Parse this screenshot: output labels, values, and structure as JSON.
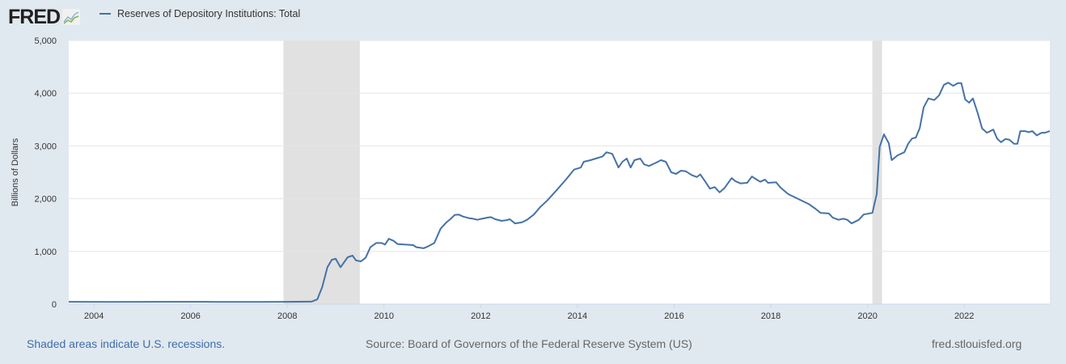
{
  "header": {
    "logo_text": "FRED",
    "series_label": "Reserves of Depository Institutions: Total"
  },
  "footer": {
    "recession_note": "Shaded areas indicate U.S. recessions.",
    "source": "Source: Board of Governors of the Federal Reserve System (US)",
    "site": "fred.stlouisfed.org"
  },
  "colors": {
    "series": "#4572a7",
    "recession": "#e1e1e1",
    "background": "#e1e9f0"
  },
  "chart_data": {
    "type": "line",
    "title": "Reserves of Depository Institutions: Total",
    "xlabel": "",
    "ylabel": "Billions of Dollars",
    "xlim": [
      2003.48,
      2023.77
    ],
    "ylim": [
      0,
      5000
    ],
    "grid": true,
    "legend_position": "top-left",
    "yticks": [
      0,
      1000,
      2000,
      3000,
      4000,
      5000
    ],
    "ytick_labels": [
      "0",
      "1,000",
      "2,000",
      "3,000",
      "4,000",
      "5,000"
    ],
    "xticks": [
      2004,
      2006,
      2008,
      2010,
      2012,
      2014,
      2016,
      2018,
      2020,
      2022
    ],
    "xtick_labels": [
      "2004",
      "2006",
      "2008",
      "2010",
      "2012",
      "2014",
      "2016",
      "2018",
      "2020",
      "2022"
    ],
    "recessions": [
      [
        2007.92,
        2009.5
      ],
      [
        2020.1,
        2020.3
      ]
    ],
    "series": [
      {
        "name": "Reserves of Depository Institutions: Total",
        "points": [
          [
            2003.48,
            45
          ],
          [
            2004.5,
            42
          ],
          [
            2005.5,
            45
          ],
          [
            2006.5,
            43
          ],
          [
            2007.5,
            42
          ],
          [
            2008.0,
            44
          ],
          [
            2008.5,
            48
          ],
          [
            2008.62,
            90
          ],
          [
            2008.72,
            320
          ],
          [
            2008.83,
            700
          ],
          [
            2008.92,
            840
          ],
          [
            2009.0,
            860
          ],
          [
            2009.1,
            700
          ],
          [
            2009.25,
            890
          ],
          [
            2009.35,
            920
          ],
          [
            2009.42,
            830
          ],
          [
            2009.52,
            810
          ],
          [
            2009.62,
            880
          ],
          [
            2009.72,
            1080
          ],
          [
            2009.84,
            1160
          ],
          [
            2009.95,
            1160
          ],
          [
            2010.02,
            1130
          ],
          [
            2010.1,
            1240
          ],
          [
            2010.2,
            1200
          ],
          [
            2010.28,
            1140
          ],
          [
            2010.6,
            1120
          ],
          [
            2010.67,
            1080
          ],
          [
            2010.82,
            1060
          ],
          [
            2010.92,
            1100
          ],
          [
            2011.04,
            1160
          ],
          [
            2011.17,
            1430
          ],
          [
            2011.29,
            1550
          ],
          [
            2011.37,
            1610
          ],
          [
            2011.46,
            1690
          ],
          [
            2011.54,
            1700
          ],
          [
            2011.64,
            1660
          ],
          [
            2011.76,
            1630
          ],
          [
            2011.84,
            1620
          ],
          [
            2011.93,
            1600
          ],
          [
            2012.03,
            1620
          ],
          [
            2012.13,
            1640
          ],
          [
            2012.21,
            1650
          ],
          [
            2012.3,
            1610
          ],
          [
            2012.43,
            1580
          ],
          [
            2012.53,
            1590
          ],
          [
            2012.6,
            1610
          ],
          [
            2012.71,
            1530
          ],
          [
            2012.85,
            1550
          ],
          [
            2012.96,
            1600
          ],
          [
            2013.1,
            1700
          ],
          [
            2013.23,
            1840
          ],
          [
            2013.37,
            1960
          ],
          [
            2013.56,
            2150
          ],
          [
            2013.76,
            2360
          ],
          [
            2013.93,
            2550
          ],
          [
            2014.07,
            2590
          ],
          [
            2014.13,
            2700
          ],
          [
            2014.27,
            2730
          ],
          [
            2014.38,
            2760
          ],
          [
            2014.52,
            2800
          ],
          [
            2014.6,
            2880
          ],
          [
            2014.72,
            2850
          ],
          [
            2014.85,
            2590
          ],
          [
            2014.93,
            2700
          ],
          [
            2015.02,
            2760
          ],
          [
            2015.1,
            2590
          ],
          [
            2015.18,
            2730
          ],
          [
            2015.3,
            2760
          ],
          [
            2015.38,
            2650
          ],
          [
            2015.48,
            2620
          ],
          [
            2015.6,
            2670
          ],
          [
            2015.73,
            2730
          ],
          [
            2015.83,
            2700
          ],
          [
            2015.94,
            2500
          ],
          [
            2016.04,
            2470
          ],
          [
            2016.14,
            2530
          ],
          [
            2016.24,
            2520
          ],
          [
            2016.36,
            2450
          ],
          [
            2016.47,
            2410
          ],
          [
            2016.54,
            2460
          ],
          [
            2016.64,
            2330
          ],
          [
            2016.74,
            2190
          ],
          [
            2016.84,
            2220
          ],
          [
            2016.94,
            2120
          ],
          [
            2017.04,
            2200
          ],
          [
            2017.19,
            2390
          ],
          [
            2017.27,
            2330
          ],
          [
            2017.37,
            2290
          ],
          [
            2017.51,
            2300
          ],
          [
            2017.61,
            2420
          ],
          [
            2017.71,
            2360
          ],
          [
            2017.78,
            2320
          ],
          [
            2017.88,
            2360
          ],
          [
            2017.94,
            2300
          ],
          [
            2018.11,
            2310
          ],
          [
            2018.2,
            2210
          ],
          [
            2018.36,
            2086
          ],
          [
            2018.53,
            2010
          ],
          [
            2018.78,
            1900
          ],
          [
            2018.92,
            1810
          ],
          [
            2019.03,
            1730
          ],
          [
            2019.2,
            1720
          ],
          [
            2019.28,
            1640
          ],
          [
            2019.4,
            1600
          ],
          [
            2019.5,
            1620
          ],
          [
            2019.58,
            1600
          ],
          [
            2019.67,
            1530
          ],
          [
            2019.82,
            1600
          ],
          [
            2019.92,
            1700
          ],
          [
            2020.1,
            1730
          ],
          [
            2020.19,
            2090
          ],
          [
            2020.25,
            2980
          ],
          [
            2020.34,
            3220
          ],
          [
            2020.44,
            3050
          ],
          [
            2020.5,
            2730
          ],
          [
            2020.62,
            2820
          ],
          [
            2020.76,
            2880
          ],
          [
            2020.84,
            3040
          ],
          [
            2020.92,
            3140
          ],
          [
            2021.0,
            3160
          ],
          [
            2021.08,
            3340
          ],
          [
            2021.16,
            3730
          ],
          [
            2021.26,
            3900
          ],
          [
            2021.38,
            3870
          ],
          [
            2021.48,
            3960
          ],
          [
            2021.58,
            4160
          ],
          [
            2021.67,
            4200
          ],
          [
            2021.77,
            4140
          ],
          [
            2021.87,
            4190
          ],
          [
            2021.94,
            4190
          ],
          [
            2022.02,
            3880
          ],
          [
            2022.1,
            3820
          ],
          [
            2022.18,
            3900
          ],
          [
            2022.28,
            3620
          ],
          [
            2022.37,
            3330
          ],
          [
            2022.47,
            3250
          ],
          [
            2022.6,
            3310
          ],
          [
            2022.68,
            3140
          ],
          [
            2022.76,
            3070
          ],
          [
            2022.85,
            3130
          ],
          [
            2022.93,
            3120
          ],
          [
            2023.03,
            3040
          ],
          [
            2023.1,
            3040
          ],
          [
            2023.16,
            3280
          ],
          [
            2023.26,
            3280
          ],
          [
            2023.33,
            3260
          ],
          [
            2023.41,
            3280
          ],
          [
            2023.5,
            3200
          ],
          [
            2023.6,
            3250
          ],
          [
            2023.67,
            3250
          ],
          [
            2023.77,
            3280
          ]
        ]
      }
    ]
  }
}
